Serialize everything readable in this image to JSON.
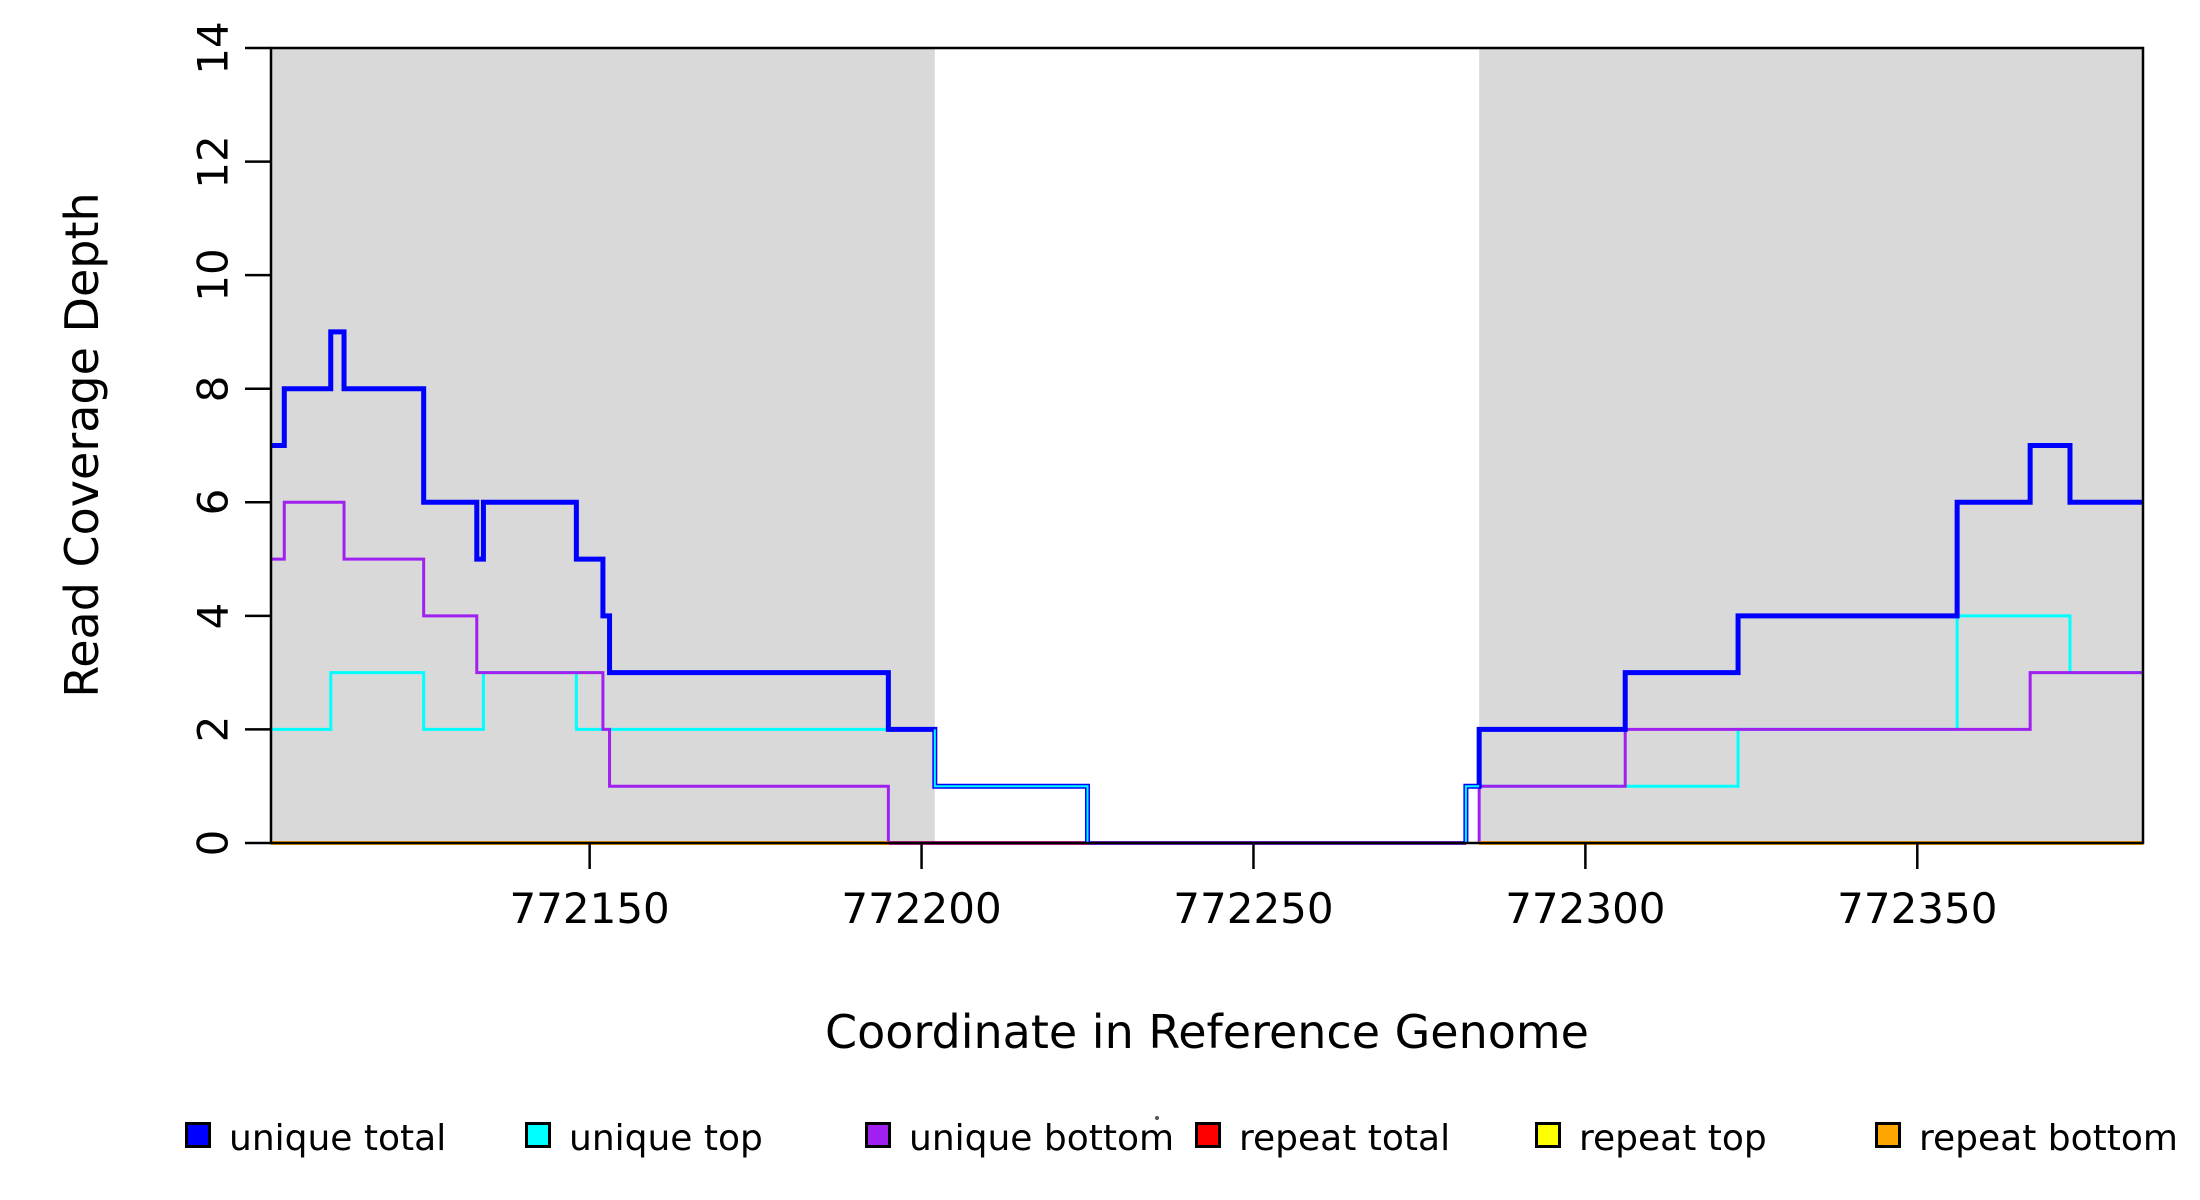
{
  "x_axis": {
    "label": "Coordinate in Reference Genome",
    "ticks": [
      772150,
      772200,
      772250,
      772300,
      772350
    ],
    "range": [
      772102,
      772384
    ]
  },
  "y_axis": {
    "label": "Read Coverage Depth",
    "ticks": [
      0,
      2,
      4,
      6,
      8,
      10,
      12,
      14
    ],
    "range": [
      0,
      14
    ]
  },
  "legend": {
    "entries": [
      {
        "label": "unique total",
        "color": "#0000FF"
      },
      {
        "label": "unique top",
        "color": "#00FFFF"
      },
      {
        "label": "unique bottom",
        "color": "#A020F0"
      },
      {
        "label": "repeat total",
        "color": "#FF0000"
      },
      {
        "label": "repeat top",
        "color": "#FFFF00"
      },
      {
        "label": "repeat bottom",
        "color": "#FFA500"
      }
    ]
  },
  "chart_data": {
    "type": "step-line",
    "title": "",
    "xlabel": "Coordinate in Reference Genome",
    "ylabel": "Read Coverage Depth",
    "xlim": [
      772102,
      772384
    ],
    "ylim": [
      0,
      14
    ],
    "grid": false,
    "legend_position": "bottom",
    "shaded_regions": [
      {
        "name": "covered-region-1",
        "x1": 772102,
        "x2": 772202,
        "color": "#D9D9D9"
      },
      {
        "name": "covered-region-2",
        "x1": 772284,
        "x2": 772384,
        "color": "#D9D9D9"
      }
    ],
    "series": [
      {
        "name": "unique top",
        "color": "#00FFFF",
        "width": 3,
        "segments": [
          {
            "x": [
              772102,
              772111,
              772125,
              772134,
              772148,
              772202
            ],
            "v": [
              2,
              3,
              2,
              3,
              2,
              1
            ],
            "xend": 772225,
            "vend": 0
          },
          {
            "x": [
              772282,
              772323,
              772356,
              772373
            ],
            "v": [
              1,
              2,
              4,
              3
            ],
            "vstart": 0,
            "xend": 772384
          }
        ]
      },
      {
        "name": "unique bottom",
        "color": "#A020F0",
        "width": 3,
        "segments": [
          {
            "x": [
              772102,
              772104,
              772113,
              772125,
              772133,
              772152,
              772153
            ],
            "v": [
              5,
              6,
              5,
              4,
              3,
              2,
              1
            ],
            "xend": 772195,
            "vend": 0
          },
          {
            "x": [
              772284,
              772306,
              772367
            ],
            "v": [
              1,
              2,
              3
            ],
            "vstart": 0,
            "xend": 772384
          }
        ]
      },
      {
        "name": "unique total",
        "color": "#0000FF",
        "width": 5,
        "segments": [
          {
            "x": [
              772102,
              772104,
              772111,
              772113,
              772125,
              772133,
              772134,
              772148,
              772152,
              772153,
              772195,
              772202
            ],
            "v": [
              7,
              8,
              9,
              8,
              6,
              5,
              6,
              5,
              4,
              3,
              2,
              1
            ],
            "xend": 772225,
            "vend": 0
          },
          {
            "x": [
              772282,
              772284,
              772306,
              772323,
              772356,
              772367,
              772373
            ],
            "v": [
              1,
              2,
              3,
              4,
              6,
              7,
              6
            ],
            "vstart": 0,
            "xend": 772384
          }
        ]
      },
      {
        "name": "repeat total",
        "color": "#FF0000",
        "width": 3,
        "segments": [],
        "note": "depth 0 everywhere; visible only as magenta baseline segment 772195-772225"
      },
      {
        "name": "repeat top",
        "color": "#FFFF00",
        "width": 3,
        "segments": [],
        "note": "depth 0 everywhere; hidden under other zero lines"
      },
      {
        "name": "repeat bottom",
        "color": "#FFA500",
        "width": 4,
        "segments": [
          {
            "x": [
              772102
            ],
            "v": [
              0
            ],
            "xend": 772195
          },
          {
            "x": [
              772284
            ],
            "v": [
              0
            ],
            "xend": 772384
          }
        ]
      }
    ],
    "baseline_segments": [
      {
        "name": "zero-line-repeat-total-blend",
        "x1": 772195,
        "x2": 772225,
        "color": "#D02690",
        "width": 4
      },
      {
        "name": "zero-line-unique-zero-blend",
        "x1": 772225,
        "x2": 772282,
        "color": "#7A2BE2",
        "width": 4
      }
    ],
    "overlays": [
      {
        "name": "cyan-over-blue-gap-left",
        "color": "#00FFFF",
        "width": 2,
        "x": [
          772202
        ],
        "v": [
          1
        ],
        "vstart": 2,
        "xend": 772225,
        "vend": 0
      },
      {
        "name": "cyan-over-blue-gap-right",
        "color": "#00FFFF",
        "width": 2,
        "x": [
          772282
        ],
        "v": [
          1
        ],
        "vstart": 0,
        "xend": 772284
      }
    ]
  }
}
